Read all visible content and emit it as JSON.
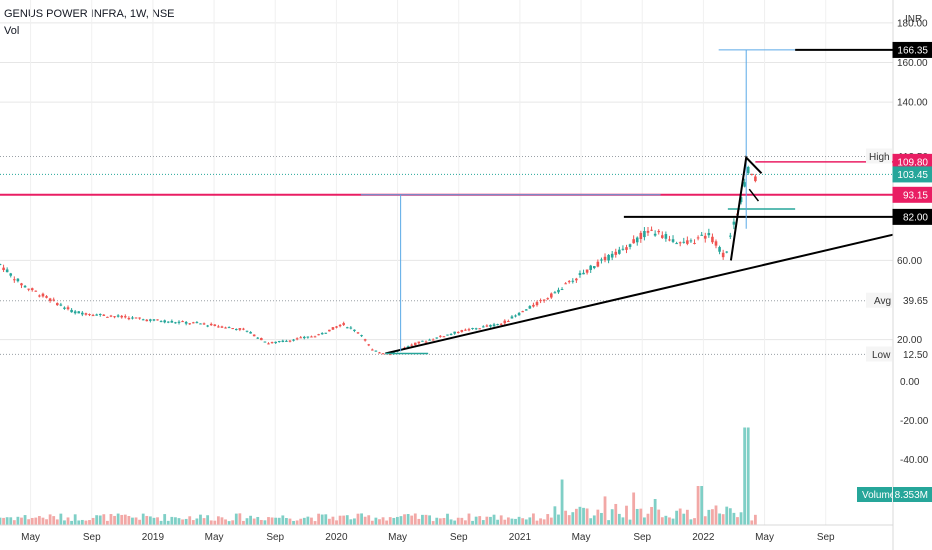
{
  "header": {
    "title": "GENUS POWER INFRA, 1W, NSE",
    "indicator": "Vol"
  },
  "chart_data": {
    "type": "candlestick",
    "currency": "INR",
    "price_axis": {
      "ticks": [
        180.0,
        160.0,
        140.0,
        60.0,
        20.0
      ],
      "ticks_text": [
        "180.00",
        "160.00",
        "140.00",
        "60.00",
        "20.00"
      ],
      "ylim": [
        -8,
        184
      ]
    },
    "volume_axis": {
      "ticks": [
        "0.00",
        "-20.00",
        "-40.00"
      ]
    },
    "x_axis": {
      "labels": [
        "May",
        "Sep",
        "2019",
        "May",
        "Sep",
        "2020",
        "May",
        "Sep",
        "2021",
        "May",
        "Sep",
        "2022",
        "May",
        "Sep"
      ],
      "label_t": [
        0.5,
        1.5,
        2.5,
        3.5,
        4.5,
        5.5,
        6.5,
        7.5,
        8.5,
        9.5,
        10.5,
        11.5,
        12.5,
        13.5
      ]
    },
    "price_path": [
      [
        0,
        58
      ],
      [
        0.35,
        48
      ],
      [
        1.2,
        34
      ],
      [
        2.4,
        30
      ],
      [
        3.3,
        28
      ],
      [
        4.0,
        25
      ],
      [
        4.4,
        18
      ],
      [
        5.2,
        22
      ],
      [
        5.6,
        28
      ],
      [
        5.9,
        23
      ],
      [
        6.1,
        14
      ],
      [
        6.4,
        13
      ],
      [
        6.8,
        18
      ],
      [
        7.5,
        24
      ],
      [
        8.2,
        28
      ],
      [
        9.0,
        42
      ],
      [
        9.6,
        55
      ],
      [
        10.2,
        66
      ],
      [
        10.6,
        75
      ],
      [
        10.9,
        72
      ],
      [
        11.2,
        68
      ],
      [
        11.6,
        73
      ],
      [
        11.85,
        62
      ],
      [
        12.0,
        78
      ],
      [
        12.25,
        107
      ],
      [
        12.35,
        100
      ]
    ],
    "badges": {
      "high_label": "High",
      "high_value": "112.50",
      "target": "166.35",
      "price_red": "109.80",
      "price_teal": "103.45",
      "level_red": "93.15",
      "level_black": "82.00",
      "avg_label": "Avg",
      "avg_value": "39.65",
      "low_label": "Low",
      "low_value": "12.50",
      "volume_label": "Volume",
      "volume_value": "8.353M"
    },
    "levels": {
      "target": 166.35,
      "last": 109.8,
      "close": 103.45,
      "resistance_red": 93.15,
      "resistance_black": 82.0,
      "avg": 39.65,
      "low": 12.5,
      "high": 112.5
    },
    "volume_spikes": [
      [
        9.2,
        0.35
      ],
      [
        9.9,
        0.22
      ],
      [
        10.35,
        0.25
      ],
      [
        10.7,
        0.2
      ],
      [
        11.45,
        0.3
      ],
      [
        12.2,
        0.75
      ]
    ],
    "colors": {
      "up": "#26a69a",
      "down": "#ef5350",
      "up_vol": "#7fcfc6",
      "down_vol": "#f2a8a6",
      "red_level": "#e91e63",
      "teal": "#26a69a",
      "measure": "#5aa9e6",
      "black": "#000000",
      "grid": "#e6e6e6"
    }
  }
}
